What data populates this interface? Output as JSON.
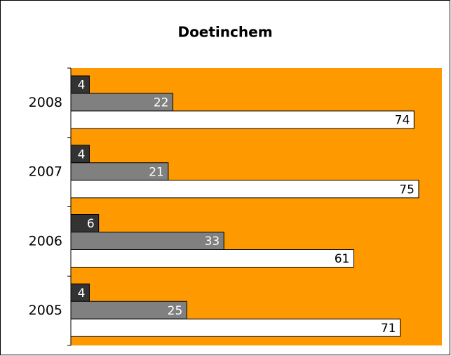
{
  "chart_data": {
    "type": "bar",
    "orientation": "horizontal",
    "title": "Doetinchem",
    "categories": [
      "2005",
      "2006",
      "2007",
      "2008"
    ],
    "series": [
      {
        "color": "#333333",
        "values": [
          4,
          6,
          4,
          4
        ]
      },
      {
        "color": "#808080",
        "values": [
          25,
          33,
          21,
          22
        ]
      },
      {
        "color": "#ffffff",
        "values": [
          71,
          61,
          75,
          74
        ]
      }
    ],
    "xlim": [
      0,
      80
    ],
    "background": "#ff9900"
  }
}
